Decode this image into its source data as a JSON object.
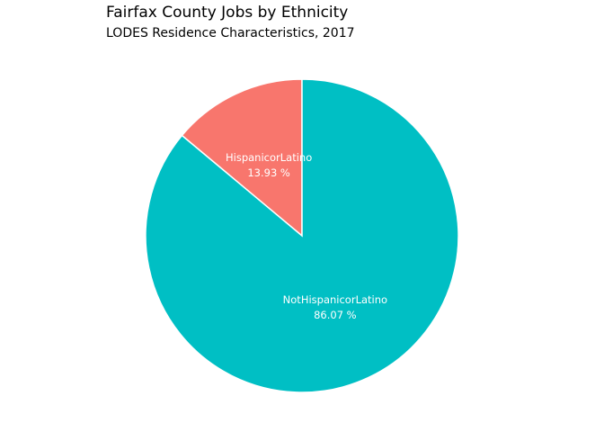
{
  "chart_data": {
    "type": "pie",
    "title": "Fairfax County Jobs by Ethnicity",
    "subtitle": "LODES Residence Characteristics, 2017",
    "slices": [
      {
        "label": "HispanicorLatino",
        "value": 13.93,
        "value_text": "13.93 %",
        "color": "#F8766D"
      },
      {
        "label": "NotHispanicorLatino",
        "value": 86.07,
        "value_text": "86.07 %",
        "color": "#00BFC4"
      }
    ],
    "start_angle": "12 o'clock",
    "direction": "counterclockwise",
    "slice_border_color": "#ffffff"
  }
}
